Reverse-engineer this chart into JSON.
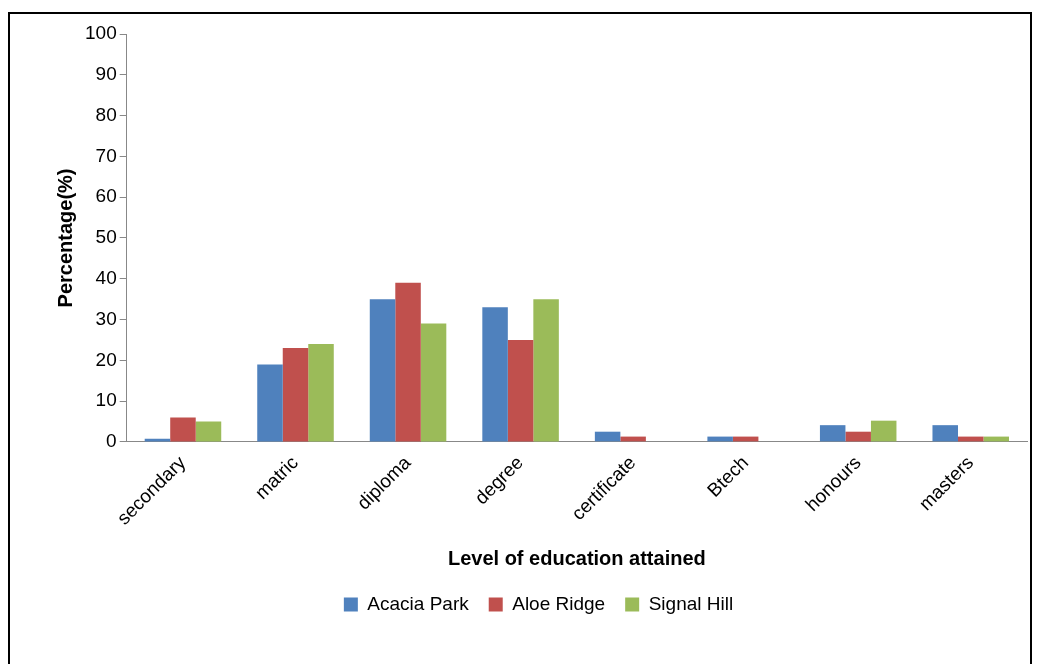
{
  "chart_data": {
    "type": "bar",
    "xlabel": "Level of education attained",
    "ylabel": "Percentage(%)",
    "categories": [
      "secondary",
      "matric",
      "diploma",
      "degree",
      "certificate",
      "Btech",
      "honours",
      "masters"
    ],
    "series": [
      {
        "name": "Acacia Park",
        "color": "#4f81bd",
        "values": [
          0.8,
          19,
          35,
          33,
          2.5,
          1.3,
          4.1,
          4.1
        ]
      },
      {
        "name": "Aloe Ridge",
        "color": "#c0504d",
        "values": [
          6,
          23,
          39,
          25,
          1.3,
          1.3,
          2.5,
          1.3
        ]
      },
      {
        "name": "Signal Hill",
        "color": "#9bbb59",
        "values": [
          5,
          24,
          29,
          35,
          null,
          null,
          5.2,
          1.3
        ]
      }
    ],
    "ylim": [
      0,
      100
    ],
    "yticks": [
      0,
      10,
      20,
      30,
      40,
      50,
      60,
      70,
      80,
      90,
      100
    ],
    "grid": false,
    "legend": "bottom"
  }
}
